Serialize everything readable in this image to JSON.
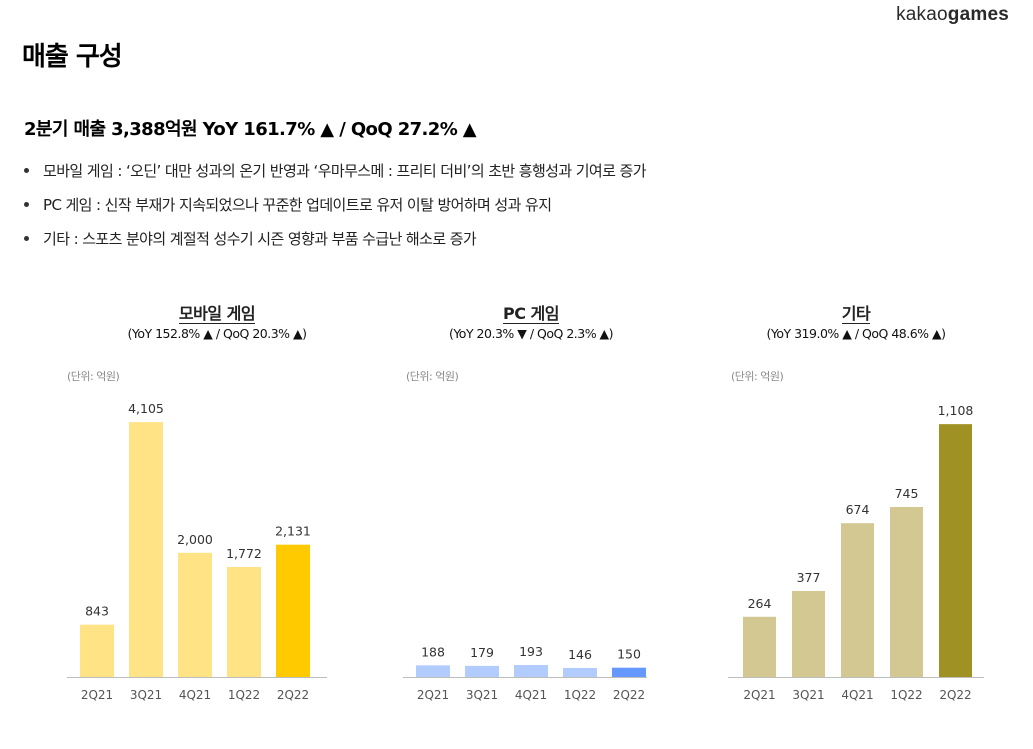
{
  "brand": {
    "prefix": "kakao",
    "suffix": "games"
  },
  "page_title": "매출 구성",
  "headline": "2분기 매출 3,388억원 YoY 161.7% ▲ / QoQ 27.2% ▲",
  "bullets": [
    "모바일 게임 : ‘오딘’ 대만 성과의 온기 반영과 ‘우마무스메 : 프리티 더비’의 초반 흥행성과 기여로 증가",
    "PC 게임 : 신작 부재가 지속되었으나 꾸준한 업데이트로 유저 이탈 방어하며 성과 유지",
    "기타 : 스포츠 분야의 계절적 성수기 시즌 영향과 부품 수급난 해소로 증가"
  ],
  "chart_data": [
    {
      "type": "bar",
      "title": "모바일 게임",
      "subtitle": "(YoY 152.8% ▲ / QoQ 20.3% ▲)",
      "unit": "(단위: 억원)",
      "categories": [
        "2Q21",
        "3Q21",
        "4Q21",
        "1Q22",
        "2Q22"
      ],
      "values": [
        843,
        4105,
        2000,
        1772,
        2131
      ],
      "value_labels": [
        "843",
        "4,105",
        "2,000",
        "1,772",
        "2,131"
      ],
      "colors": [
        "#FFE385",
        "#FFE385",
        "#FFE385",
        "#FFE385",
        "#FFCA00"
      ],
      "ylim": [
        0,
        4300
      ],
      "grid": false
    },
    {
      "type": "bar",
      "title": "PC 게임",
      "subtitle": "(YoY 20.3% ▼ / QoQ 2.3% ▲)",
      "unit": "(단위: 억원)",
      "categories": [
        "2Q21",
        "3Q21",
        "4Q21",
        "1Q22",
        "2Q22"
      ],
      "values": [
        188,
        179,
        193,
        146,
        150
      ],
      "value_labels": [
        "188",
        "179",
        "193",
        "146",
        "150"
      ],
      "colors": [
        "#B3CCFF",
        "#B3CCFF",
        "#B3CCFF",
        "#B3CCFF",
        "#6699FF"
      ],
      "ylim": [
        0,
        4300
      ],
      "grid": false
    },
    {
      "type": "bar",
      "title": "기타",
      "subtitle": "(YoY 319.0% ▲ / QoQ 48.6% ▲)",
      "unit": "(단위: 억원)",
      "categories": [
        "2Q21",
        "3Q21",
        "4Q21",
        "1Q22",
        "2Q22"
      ],
      "values": [
        264,
        377,
        674,
        745,
        1108
      ],
      "value_labels": [
        "264",
        "377",
        "674",
        "745",
        "1,108"
      ],
      "colors": [
        "#D4C892",
        "#D4C892",
        "#D4C892",
        "#D4C892",
        "#A09124"
      ],
      "ylim": [
        0,
        1170
      ],
      "grid": false
    }
  ]
}
